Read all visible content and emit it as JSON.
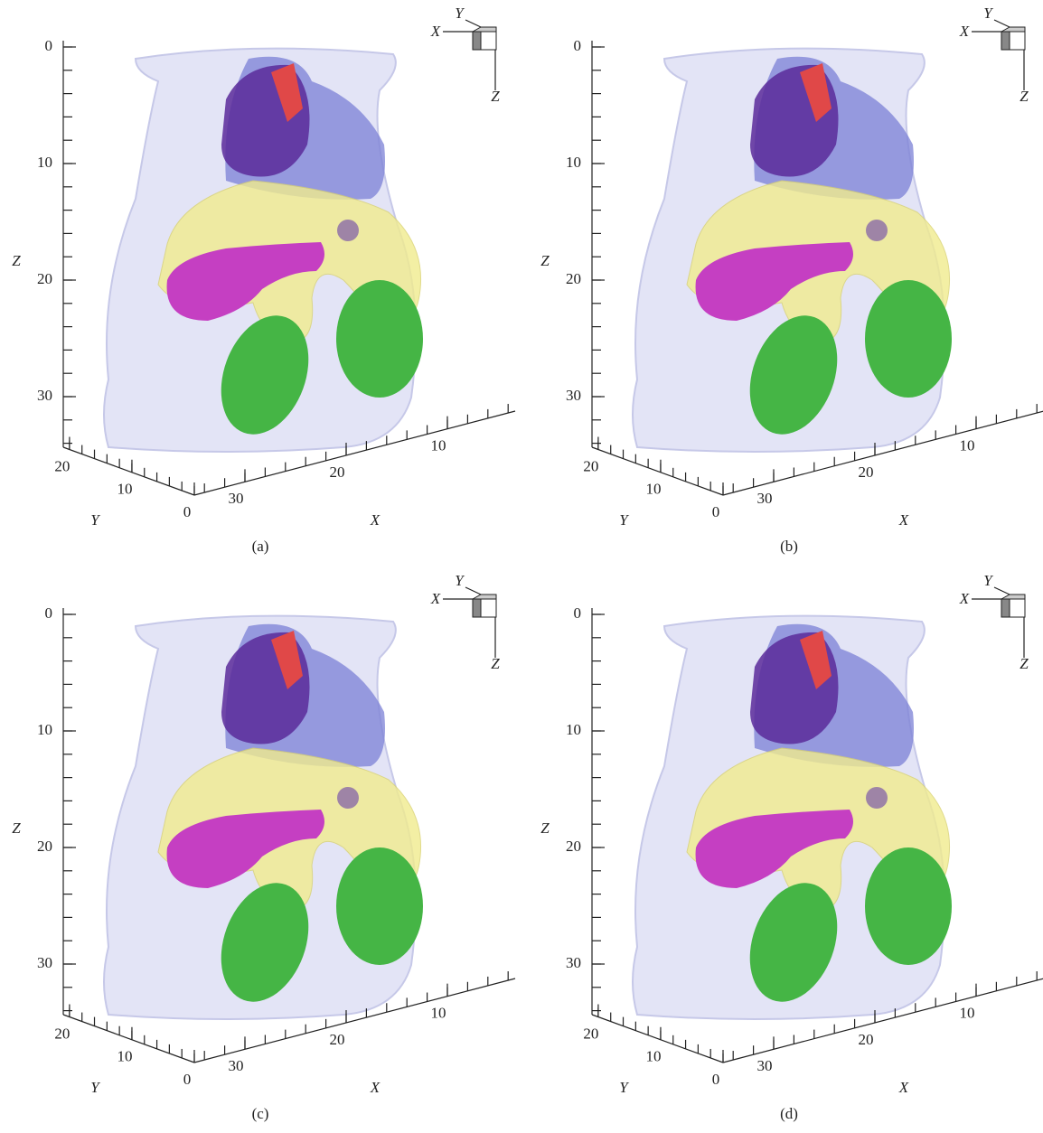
{
  "panels": [
    {
      "caption": "(a)",
      "z_axis": {
        "label": "Z",
        "ticks": [
          0,
          10,
          20,
          30
        ]
      },
      "y_axis": {
        "label": "Y",
        "ticks": [
          20,
          10,
          0
        ]
      },
      "x_axis": {
        "label": "X",
        "ticks": [
          30,
          20,
          10
        ]
      },
      "triad": {
        "x": "X",
        "y": "Y",
        "z": "Z"
      }
    },
    {
      "caption": "(b)",
      "z_axis": {
        "label": "Z",
        "ticks": [
          0,
          10,
          20,
          30
        ]
      },
      "y_axis": {
        "label": "Y",
        "ticks": [
          20,
          10,
          0
        ]
      },
      "x_axis": {
        "label": "X",
        "ticks": [
          30,
          20,
          10
        ]
      },
      "triad": {
        "x": "X",
        "y": "Y",
        "z": "Z"
      }
    },
    {
      "caption": "(c)",
      "z_axis": {
        "label": "Z",
        "ticks": [
          0,
          10,
          20,
          30
        ]
      },
      "y_axis": {
        "label": "Y",
        "ticks": [
          20,
          10,
          0
        ]
      },
      "x_axis": {
        "label": "X",
        "ticks": [
          30,
          20,
          10
        ]
      },
      "triad": {
        "x": "X",
        "y": "Y",
        "z": "Z"
      }
    },
    {
      "caption": "(d)",
      "z_axis": {
        "label": "Z",
        "ticks": [
          0,
          10,
          20,
          30
        ]
      },
      "y_axis": {
        "label": "Y",
        "ticks": [
          20,
          10,
          0
        ]
      },
      "x_axis": {
        "label": "X",
        "ticks": [
          30,
          20,
          10
        ]
      },
      "triad": {
        "x": "X",
        "y": "Y",
        "z": "Z"
      }
    }
  ]
}
